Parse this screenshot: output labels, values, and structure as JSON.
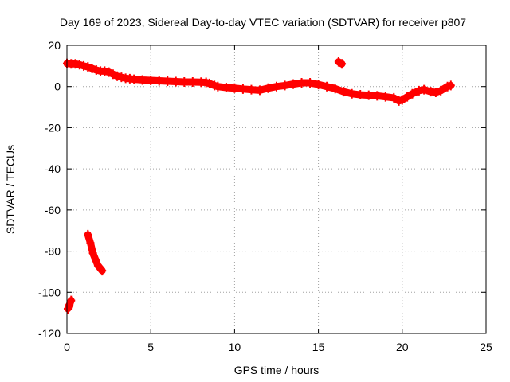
{
  "chart_data": {
    "type": "scatter",
    "title": "Day 169 of 2023, Sidereal Day-to-day VTEC variation (SDTVAR) for receiver p807",
    "xlabel": "GPS time / hours",
    "ylabel": "SDTVAR / TECUs",
    "xlim": [
      0,
      25
    ],
    "ylim": [
      -120,
      20
    ],
    "xticks": [
      "0",
      "5",
      "10",
      "15",
      "20",
      "25"
    ],
    "yticks": [
      "20",
      "0",
      "-20",
      "-40",
      "-60",
      "-80",
      "-100",
      "-120"
    ],
    "grid": true,
    "marker_color": "#ff0000",
    "series": [
      {
        "name": "main",
        "points": [
          [
            0.0,
            11.2
          ],
          [
            0.25,
            11.0
          ],
          [
            0.5,
            11.0
          ],
          [
            0.75,
            10.6
          ],
          [
            1.0,
            10.0
          ],
          [
            1.25,
            9.5
          ],
          [
            1.5,
            8.8
          ],
          [
            1.75,
            8.0
          ],
          [
            2.0,
            7.5
          ],
          [
            2.25,
            7.5
          ],
          [
            2.5,
            7.0
          ],
          [
            2.75,
            6.0
          ],
          [
            3.0,
            5.0
          ],
          [
            3.25,
            4.5
          ],
          [
            3.5,
            4.0
          ],
          [
            3.75,
            3.8
          ],
          [
            4.0,
            3.5
          ],
          [
            4.5,
            3.2
          ],
          [
            5.0,
            3.0
          ],
          [
            5.5,
            2.8
          ],
          [
            6.0,
            2.6
          ],
          [
            6.5,
            2.4
          ],
          [
            7.0,
            2.2
          ],
          [
            7.5,
            2.2
          ],
          [
            8.0,
            2.1
          ],
          [
            8.3,
            2.0
          ],
          [
            8.5,
            1.5
          ],
          [
            8.8,
            0.5
          ],
          [
            9.0,
            0.0
          ],
          [
            9.5,
            -0.5
          ],
          [
            10.0,
            -0.8
          ],
          [
            10.5,
            -1.2
          ],
          [
            11.0,
            -1.5
          ],
          [
            11.5,
            -1.8
          ],
          [
            12.0,
            -0.8
          ],
          [
            12.5,
            0.0
          ],
          [
            13.0,
            0.5
          ],
          [
            13.5,
            1.2
          ],
          [
            14.0,
            1.8
          ],
          [
            14.5,
            1.8
          ],
          [
            15.0,
            1.0
          ],
          [
            15.5,
            0.0
          ],
          [
            16.0,
            -1.0
          ],
          [
            16.5,
            -2.5
          ],
          [
            17.0,
            -3.5
          ],
          [
            17.5,
            -4.0
          ],
          [
            18.0,
            -4.2
          ],
          [
            18.5,
            -4.5
          ],
          [
            19.0,
            -5.0
          ],
          [
            19.5,
            -5.5
          ],
          [
            19.8,
            -7.0
          ],
          [
            20.0,
            -6.5
          ],
          [
            20.3,
            -5.0
          ],
          [
            20.6,
            -3.5
          ],
          [
            21.0,
            -2.0
          ],
          [
            21.3,
            -1.5
          ],
          [
            21.7,
            -2.5
          ],
          [
            22.0,
            -2.8
          ],
          [
            22.3,
            -2.0
          ],
          [
            22.7,
            0.0
          ],
          [
            22.9,
            0.5
          ]
        ]
      },
      {
        "name": "isolated",
        "points": [
          [
            16.2,
            12.0
          ],
          [
            16.4,
            11.0
          ]
        ]
      },
      {
        "name": "early-drop",
        "points": [
          [
            1.25,
            -72
          ],
          [
            1.4,
            -76
          ],
          [
            1.55,
            -81
          ],
          [
            1.7,
            -84
          ],
          [
            1.85,
            -87
          ],
          [
            2.0,
            -88.5
          ],
          [
            2.1,
            -89.5
          ]
        ]
      },
      {
        "name": "early-low",
        "points": [
          [
            0.05,
            -108
          ],
          [
            0.15,
            -106
          ],
          [
            0.25,
            -104
          ]
        ]
      }
    ]
  }
}
